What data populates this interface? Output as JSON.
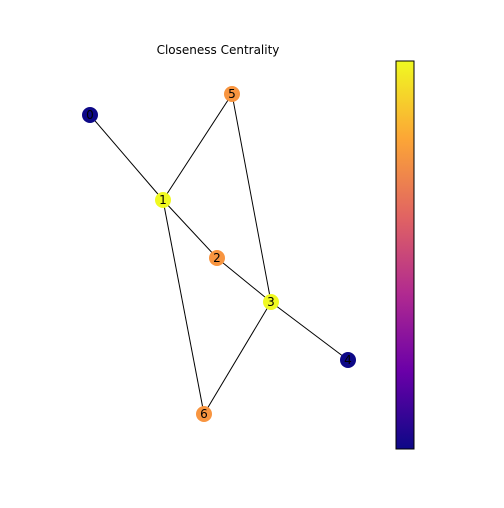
{
  "title": "Closeness Centrality",
  "nodes": [
    {
      "id": "0",
      "label": "0",
      "color": "#0d0887"
    },
    {
      "id": "1",
      "label": "1",
      "color": "#f0f921"
    },
    {
      "id": "2",
      "label": "2",
      "color": "#f89540"
    },
    {
      "id": "3",
      "label": "3",
      "color": "#f0f921"
    },
    {
      "id": "4",
      "label": "4",
      "color": "#0d0887"
    },
    {
      "id": "5",
      "label": "5",
      "color": "#f89540"
    },
    {
      "id": "6",
      "label": "6",
      "color": "#f89540"
    }
  ],
  "edges": [
    [
      "0",
      "1"
    ],
    [
      "1",
      "5"
    ],
    [
      "1",
      "2"
    ],
    [
      "1",
      "6"
    ],
    [
      "5",
      "3"
    ],
    [
      "2",
      "3"
    ],
    [
      "3",
      "6"
    ],
    [
      "3",
      "4"
    ]
  ],
  "colorbar": {
    "colormap": "plasma",
    "colors": [
      "#0d0887",
      "#6a00a8",
      "#b12a90",
      "#e16462",
      "#fca636",
      "#f0f921"
    ]
  }
}
